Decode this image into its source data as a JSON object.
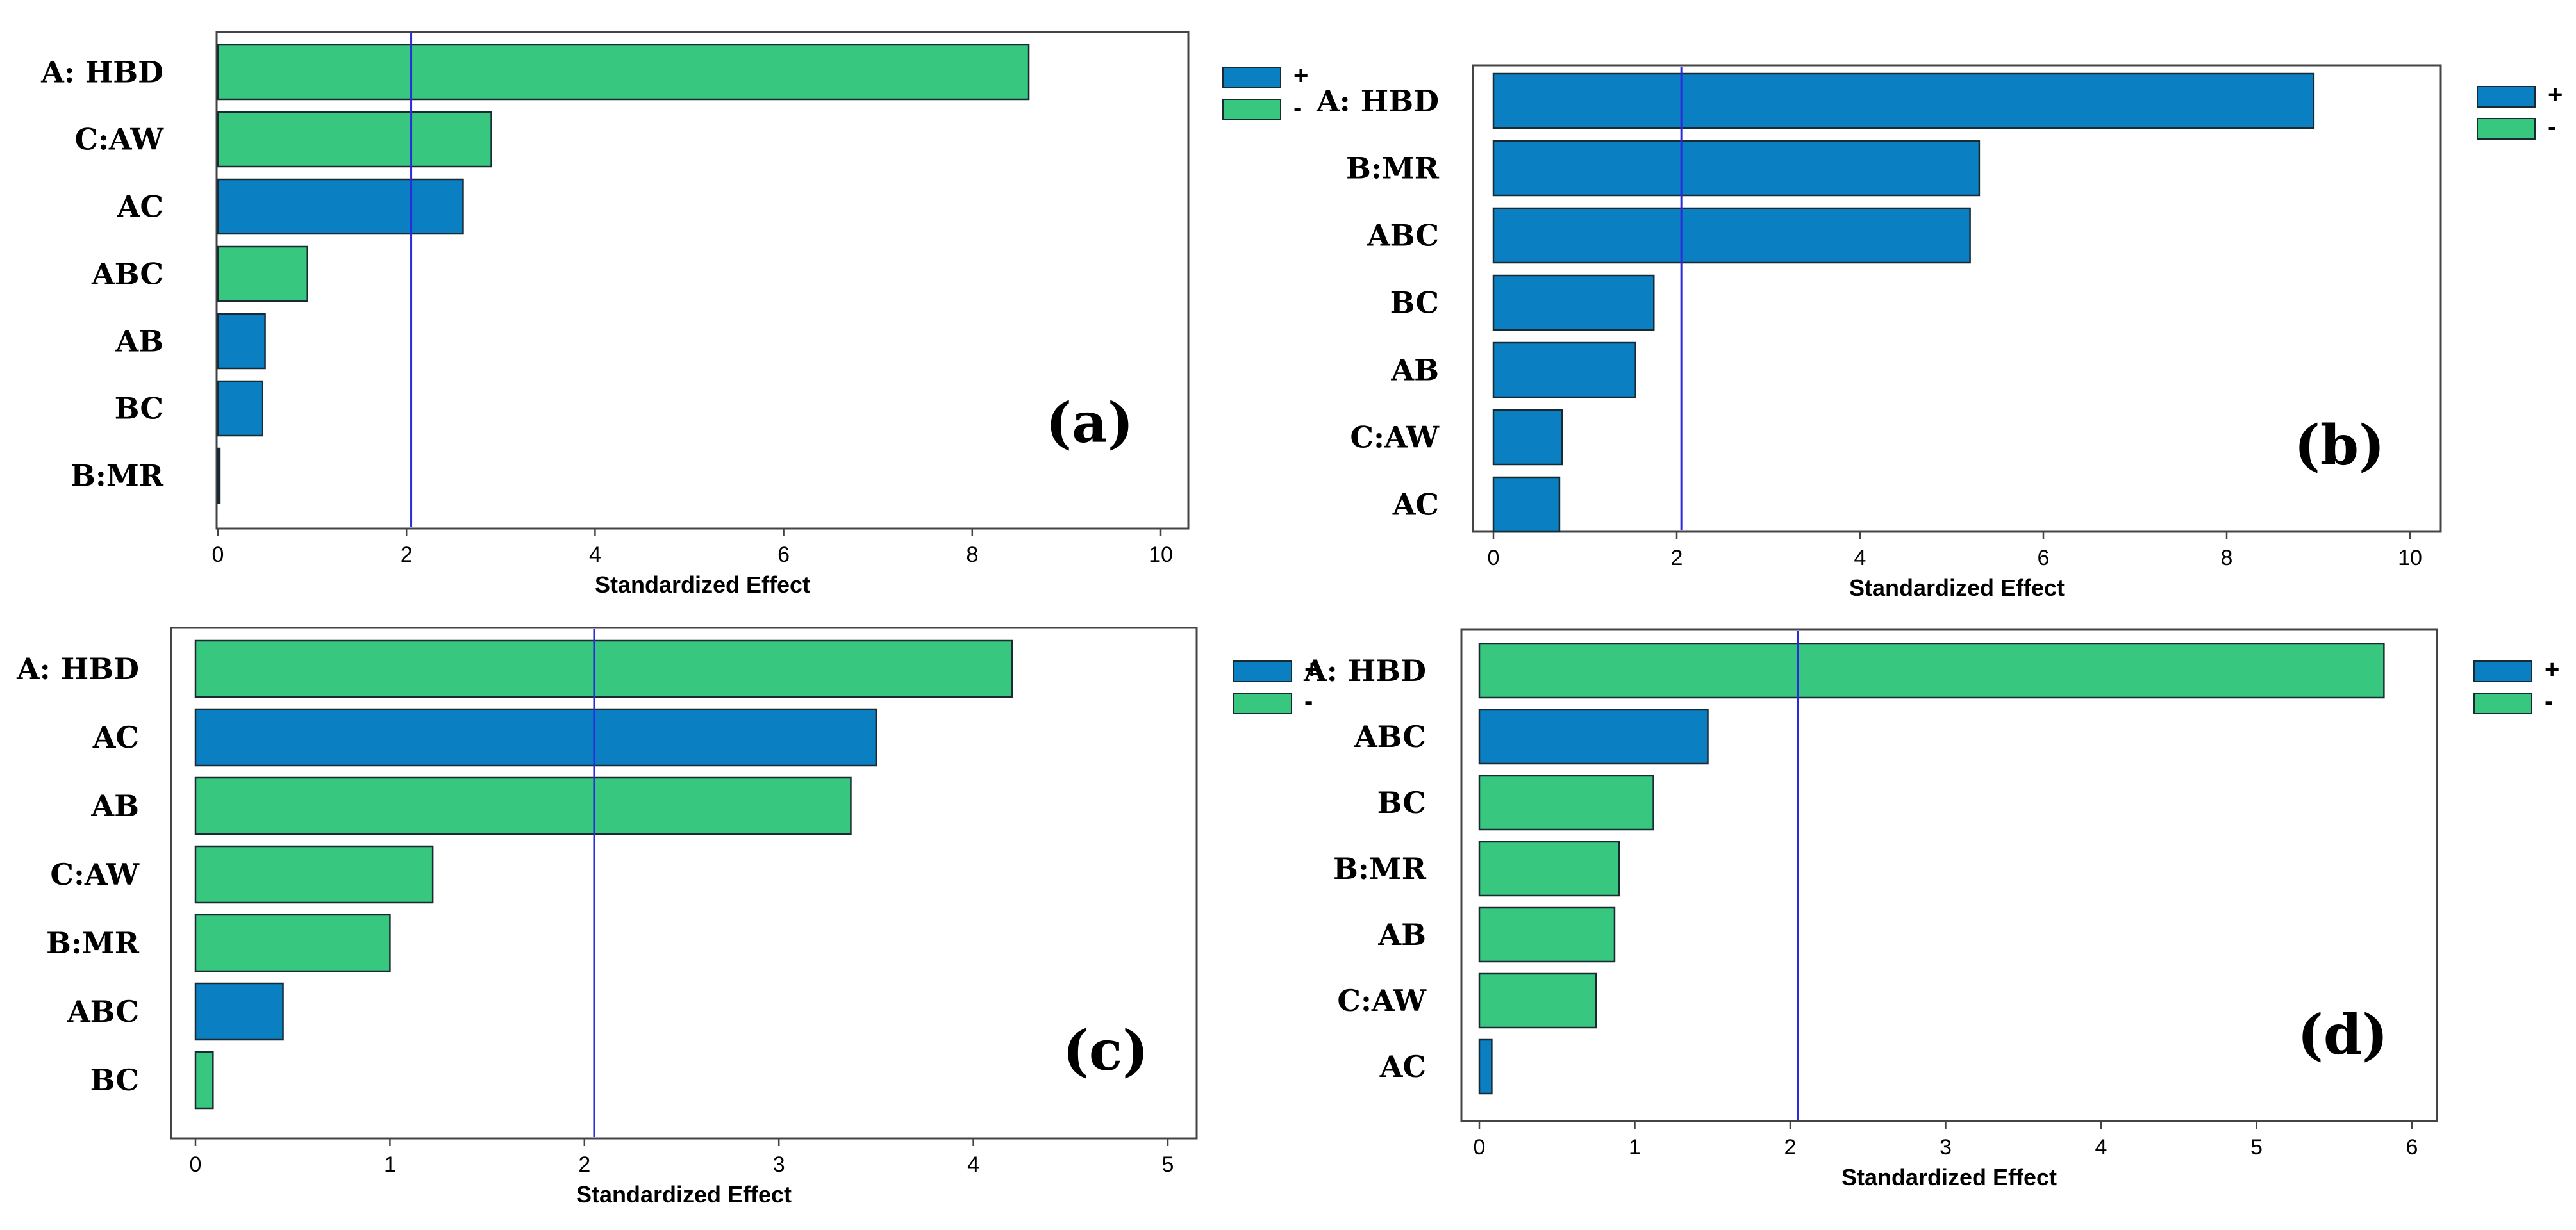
{
  "colors": {
    "positive": "#0a7fc1",
    "negative": "#37c77f",
    "reference_line": "#2b2bdb",
    "frame": "#444444"
  },
  "chart_data": [
    {
      "type": "bar",
      "orientation": "horizontal",
      "panel": "(a)",
      "xlabel": "Standardized Effect",
      "xlim": [
        0,
        10
      ],
      "xticks": [
        0,
        2,
        4,
        6,
        8,
        10
      ],
      "reference_line": 2.05,
      "legend": {
        "position": "top-right",
        "entries": [
          {
            "sign": "+",
            "series": "positive"
          },
          {
            "sign": "-",
            "series": "negative"
          }
        ]
      },
      "categories": [
        "A: HBD",
        "C:AW",
        "AC",
        "ABC",
        "AB",
        "BC",
        "B:MR"
      ],
      "values": [
        8.6,
        2.9,
        2.6,
        0.95,
        0.5,
        0.47,
        0.02
      ],
      "signs": [
        "-",
        "-",
        "+",
        "-",
        "+",
        "+",
        "+"
      ]
    },
    {
      "type": "bar",
      "orientation": "horizontal",
      "panel": "(b)",
      "xlabel": "Standardized Effect",
      "xlim": [
        0,
        10
      ],
      "xticks": [
        0,
        2,
        4,
        6,
        8,
        10
      ],
      "reference_line": 2.05,
      "legend": {
        "position": "top-right",
        "entries": [
          {
            "sign": "+",
            "series": "positive"
          },
          {
            "sign": "-",
            "series": "negative"
          }
        ]
      },
      "categories": [
        "A: HBD",
        "B:MR",
        "ABC",
        "BC",
        "AB",
        "C:AW",
        "AC"
      ],
      "values": [
        8.95,
        5.3,
        5.2,
        1.75,
        1.55,
        0.75,
        0.72
      ],
      "signs": [
        "+",
        "+",
        "+",
        "+",
        "+",
        "+",
        "+"
      ]
    },
    {
      "type": "bar",
      "orientation": "horizontal",
      "panel": "(c)",
      "xlabel": "Standardized Effect",
      "xlim": [
        0,
        5
      ],
      "xticks": [
        0,
        1,
        2,
        3,
        4,
        5
      ],
      "reference_line": 2.05,
      "legend": {
        "position": "top-right",
        "entries": [
          {
            "sign": "+",
            "series": "positive"
          },
          {
            "sign": "-",
            "series": "negative"
          }
        ]
      },
      "categories": [
        "A: HBD",
        "AC",
        "AB",
        "C:AW",
        "B:MR",
        "ABC",
        "BC"
      ],
      "values": [
        4.2,
        3.5,
        3.37,
        1.22,
        1.0,
        0.45,
        0.09
      ],
      "signs": [
        "-",
        "+",
        "-",
        "-",
        "-",
        "+",
        "-"
      ]
    },
    {
      "type": "bar",
      "orientation": "horizontal",
      "panel": "(d)",
      "xlabel": "Standardized Effect",
      "xlim": [
        0,
        6
      ],
      "xticks": [
        0,
        1,
        2,
        3,
        4,
        5,
        6
      ],
      "reference_line": 2.05,
      "legend": {
        "position": "top-right",
        "entries": [
          {
            "sign": "+",
            "series": "positive"
          },
          {
            "sign": "-",
            "series": "negative"
          }
        ]
      },
      "categories": [
        "A: HBD",
        "ABC",
        "BC",
        "B:MR",
        "AB",
        "C:AW",
        "AC"
      ],
      "values": [
        5.82,
        1.47,
        1.12,
        0.9,
        0.87,
        0.75,
        0.08
      ],
      "signs": [
        "-",
        "+",
        "-",
        "-",
        "-",
        "-",
        "+"
      ]
    }
  ]
}
